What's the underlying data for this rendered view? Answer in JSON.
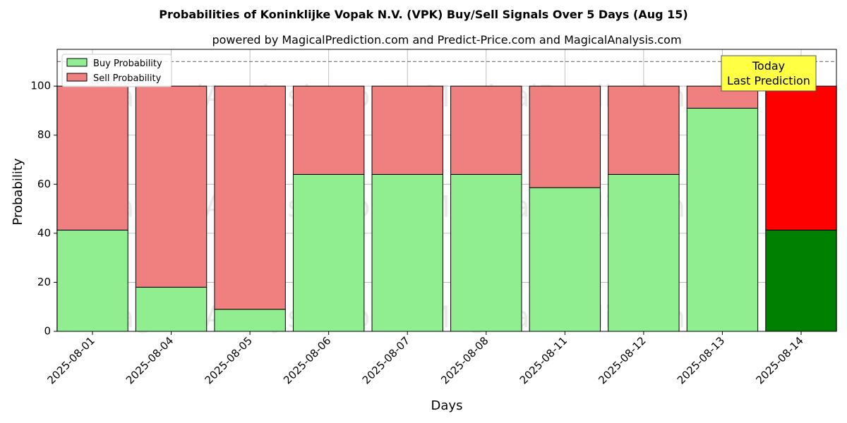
{
  "chart_data": {
    "type": "bar",
    "stacked": true,
    "title": "Probabilities of Koninklijke Vopak N.V. (VPK) Buy/Sell Signals Over 5 Days (Aug 15)",
    "subtitle": "powered by MagicalPrediction.com and Predict-Price.com and MagicalAnalysis.com",
    "xlabel": "Days",
    "ylabel": "Probability",
    "ylim": [
      0,
      115
    ],
    "yticks": [
      0,
      20,
      40,
      60,
      80,
      100
    ],
    "grid": true,
    "legend_position": "top-left",
    "reference_line": 110,
    "categories": [
      "2025-08-01",
      "2025-08-04",
      "2025-08-05",
      "2025-08-06",
      "2025-08-07",
      "2025-08-08",
      "2025-08-11",
      "2025-08-12",
      "2025-08-13",
      "2025-08-14"
    ],
    "series": [
      {
        "name": "Buy Probability",
        "values": [
          41.3,
          18,
          9,
          64,
          64,
          64,
          58.6,
          64,
          91,
          41.3
        ],
        "color": "#90ee90",
        "highlight_color": "#008000"
      },
      {
        "name": "Sell Probability",
        "values": [
          58.7,
          82,
          91,
          36,
          36,
          36,
          41.4,
          36,
          9,
          58.7
        ],
        "color": "#f08080",
        "highlight_color": "#ff0000"
      }
    ],
    "highlight_index": 9,
    "annotation": {
      "lines": [
        "Today",
        "Last Prediction"
      ],
      "background": "#ffff44"
    },
    "watermarks": [
      "MagicalAnalysis.com",
      "MagicalPrediction.com"
    ]
  }
}
